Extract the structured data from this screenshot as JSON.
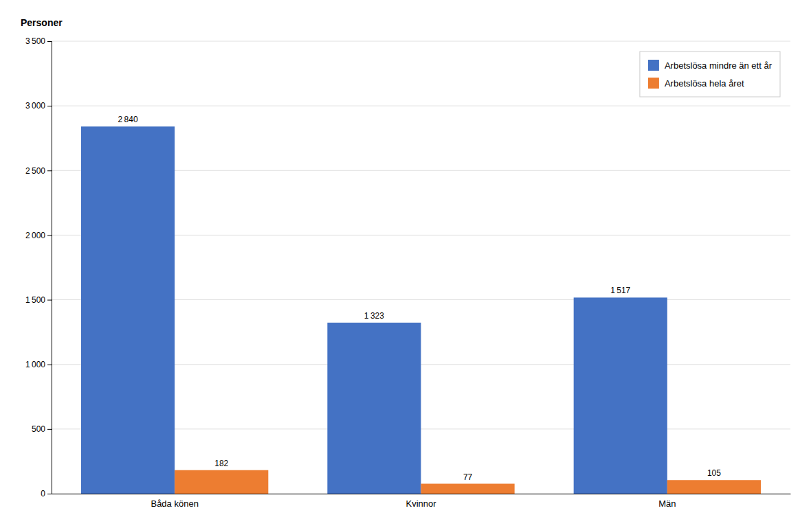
{
  "chart_data": {
    "type": "bar",
    "ylabel": "Personer",
    "categories": [
      "Båda könen",
      "Kvinnor",
      "Män"
    ],
    "series": [
      {
        "name": "Arbetslösa mindre än ett år",
        "color": "#4472C4",
        "values": [
          2840,
          1323,
          1517
        ],
        "value_labels": [
          "2 840",
          "1 323",
          "1 517"
        ]
      },
      {
        "name": "Arbetslösa hela året",
        "color": "#ED7D31",
        "values": [
          182,
          77,
          105
        ]
      }
    ],
    "ylim": [
      0,
      3500
    ],
    "yticks": [
      0,
      500,
      {
        "value": 1000,
        "label": "1 000"
      },
      {
        "value": 1500,
        "label": "1 500"
      },
      {
        "value": 2000,
        "label": "2 000"
      },
      {
        "value": 2500,
        "label": "2 500"
      },
      {
        "value": 3000,
        "label": "3 000"
      },
      {
        "value": 3500,
        "label": "3 500"
      }
    ],
    "grid": true,
    "legend": "upper right",
    "data_labels": true
  }
}
